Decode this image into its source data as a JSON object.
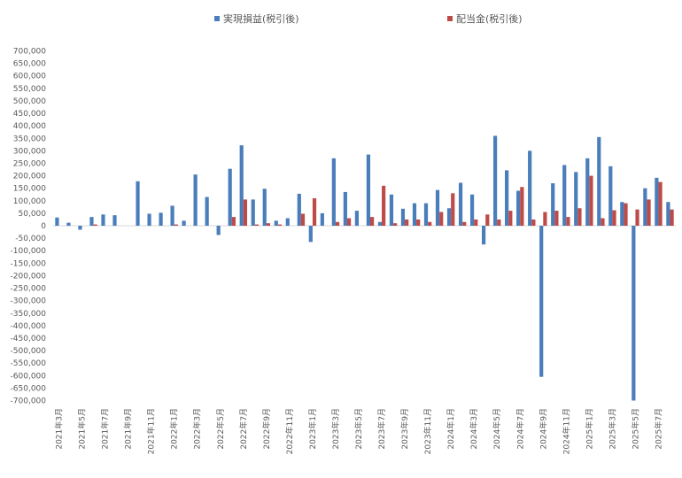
{
  "chart_data": {
    "type": "bar",
    "legend_position": "top",
    "colors": {
      "realized": "#4a7ebb",
      "dividend": "#be4b48"
    },
    "series": [
      {
        "name": "実現損益(税引後)",
        "color": "#4a7ebb",
        "values": [
          33000,
          12000,
          -16000,
          35000,
          45000,
          42000,
          0,
          178000,
          48000,
          52000,
          80000,
          20000,
          205000,
          115000,
          -37000,
          228000,
          322000,
          105000,
          148000,
          20000,
          30000,
          128000,
          -65000,
          50000,
          270000,
          135000,
          60000,
          285000,
          15000,
          125000,
          68000,
          90000,
          90000,
          143000,
          70000,
          172000,
          125000,
          -75000,
          360000,
          222000,
          140000,
          300000,
          -605000,
          170000,
          243000,
          215000,
          270000,
          355000,
          238000,
          95000,
          -700000,
          150000,
          192000,
          95000
        ]
      },
      {
        "name": "配当金(税引後)",
        "color": "#be4b48",
        "values": [
          0,
          0,
          0,
          5000,
          0,
          0,
          0,
          0,
          0,
          0,
          5000,
          0,
          0,
          0,
          0,
          35000,
          105000,
          5000,
          10000,
          5000,
          0,
          48000,
          110000,
          0,
          15000,
          30000,
          0,
          35000,
          160000,
          10000,
          25000,
          25000,
          15000,
          55000,
          130000,
          15000,
          25000,
          45000,
          25000,
          60000,
          155000,
          25000,
          55000,
          60000,
          35000,
          70000,
          200000,
          30000,
          62000,
          90000,
          65000,
          105000,
          175000,
          65000
        ]
      }
    ],
    "x_tick_labels": [
      "2021年3月",
      "2021年5月",
      "2021年7月",
      "2021年9月",
      "2021年11月",
      "2022年1月",
      "2022年3月",
      "2022年5月",
      "2022年7月",
      "2022年9月",
      "2022年11月",
      "2023年1月",
      "2023年3月",
      "2023年5月",
      "2023年7月",
      "2023年9月",
      "2023年11月",
      "2024年1月",
      "2024年3月",
      "2024年5月",
      "2024年7月",
      "2024年9月",
      "2024年11月",
      "2025年1月",
      "2025年3月",
      "2025年5月",
      "2025年7月"
    ],
    "y_tick_labels": [
      "700,000",
      "600,000",
      "500,000",
      "400,000",
      "300,000",
      "200,000",
      "100,000",
      "0",
      "-100,000",
      "-200,000",
      "-300,000",
      "-400,000",
      "-500,000",
      "-600,000",
      "-700,000"
    ],
    "y_ticks": [
      700000,
      650000,
      600000,
      550000,
      500000,
      450000,
      400000,
      350000,
      300000,
      250000,
      200000,
      150000,
      100000,
      50000,
      0,
      -50000,
      -100000,
      -150000,
      -200000,
      -250000,
      -300000,
      -350000,
      -400000,
      -450000,
      -500000,
      -550000,
      -600000,
      -650000,
      -700000
    ],
    "ylim": [
      -700000,
      700000
    ],
    "grid": false,
    "title": "",
    "xlabel": "",
    "ylabel": ""
  }
}
